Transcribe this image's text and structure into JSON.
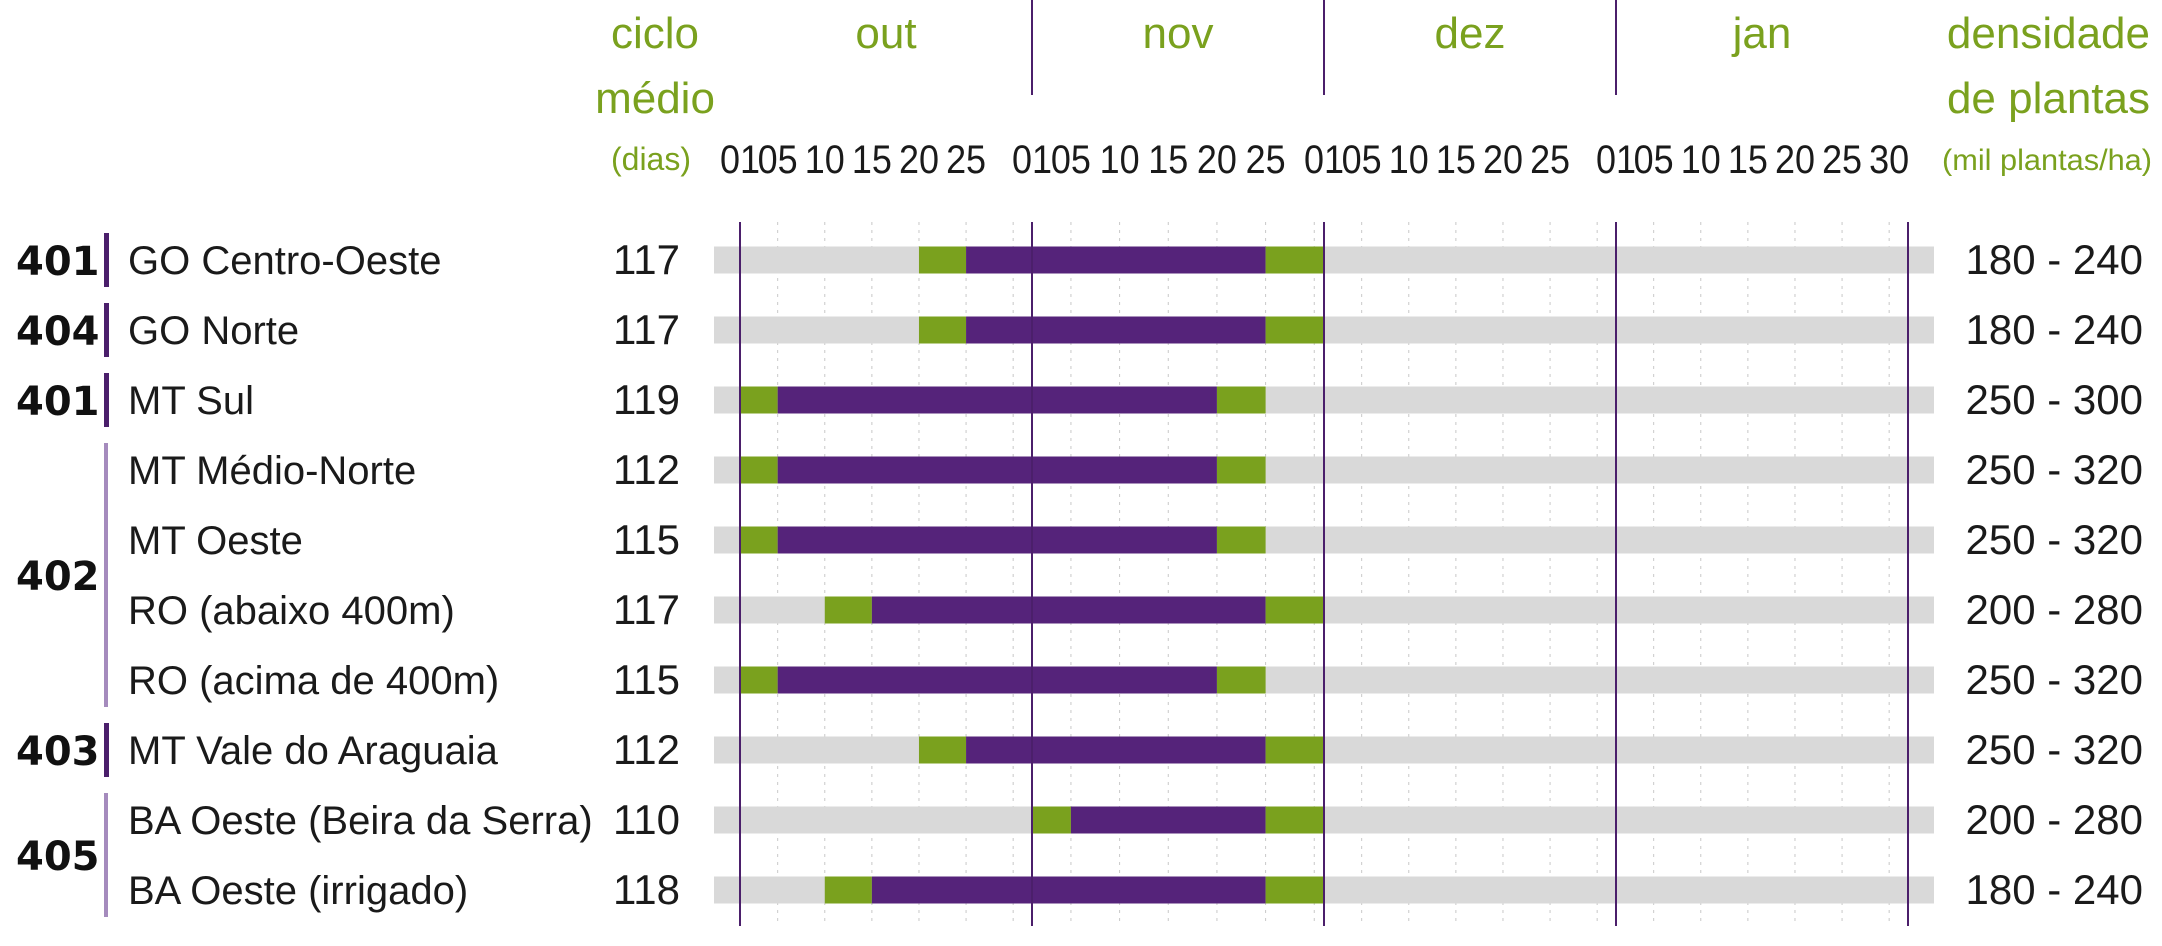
{
  "chart_data": {
    "type": "gantt",
    "headers": {
      "cycle": [
        "ciclo",
        "médio",
        "(dias)"
      ],
      "density": [
        "densidade",
        "de plantas",
        "(mil plantas/ha)"
      ]
    },
    "months": [
      {
        "name": "out",
        "ticks": [
          "01",
          "05",
          "10",
          "15",
          "20",
          "25"
        ]
      },
      {
        "name": "nov",
        "ticks": [
          "01",
          "05",
          "10",
          "15",
          "20",
          "25"
        ]
      },
      {
        "name": "dez",
        "ticks": [
          "01",
          "05",
          "10",
          "15",
          "20",
          "25"
        ]
      },
      {
        "name": "jan",
        "ticks": [
          "01",
          "05",
          "10",
          "15",
          "20",
          "25",
          "30"
        ]
      }
    ],
    "rows": [
      {
        "label": "GO Centro-Oeste",
        "cycle": "117",
        "density": "180 - 240",
        "green_start": "out 20",
        "purple_start": "out 25",
        "purple_end": "nov 25",
        "green_end": "dez 01"
      },
      {
        "label": "GO Norte",
        "cycle": "117",
        "density": "180 - 240",
        "green_start": "out 20",
        "purple_start": "out 25",
        "purple_end": "nov 25",
        "green_end": "dez 01"
      },
      {
        "label": "MT Sul",
        "cycle": "119",
        "density": "250 - 300",
        "green_start": "out 01",
        "purple_start": "out 05",
        "purple_end": "nov 20",
        "green_end": "nov 25"
      },
      {
        "label": "MT Médio-Norte",
        "cycle": "112",
        "density": "250 - 320",
        "green_start": "out 01",
        "purple_start": "out 05",
        "purple_end": "nov 20",
        "green_end": "nov 25"
      },
      {
        "label": "MT Oeste",
        "cycle": "115",
        "density": "250 - 320",
        "green_start": "out 01",
        "purple_start": "out 05",
        "purple_end": "nov 20",
        "green_end": "nov 25"
      },
      {
        "label": "RO (abaixo 400m)",
        "cycle": "117",
        "density": "200 - 280",
        "green_start": "out 10",
        "purple_start": "out 15",
        "purple_end": "nov 25",
        "green_end": "dez 01"
      },
      {
        "label": "RO (acima de 400m)",
        "cycle": "115",
        "density": "250 - 320",
        "green_start": "out 01",
        "purple_start": "out 05",
        "purple_end": "nov 20",
        "green_end": "nov 25"
      },
      {
        "label": "MT Vale do Araguaia",
        "cycle": "112",
        "density": "250 - 320",
        "green_start": "out 20",
        "purple_start": "out 25",
        "purple_end": "nov 25",
        "green_end": "dez 01"
      },
      {
        "label": "BA Oeste (Beira da Serra)",
        "cycle": "110",
        "density": "200 - 280",
        "green_start": "nov 01",
        "purple_start": "nov 05",
        "purple_end": "nov 25",
        "green_end": "dez 01"
      },
      {
        "label": "BA Oeste (irrigado)",
        "cycle": "118",
        "density": "180 - 240",
        "green_start": "out 10",
        "purple_start": "out 15",
        "purple_end": "nov 25",
        "green_end": "dez 01"
      }
    ],
    "regions": [
      {
        "code": "401",
        "rows": [
          0,
          0
        ]
      },
      {
        "code": "404",
        "rows": [
          1,
          1
        ]
      },
      {
        "code": "401",
        "rows": [
          2,
          2
        ]
      },
      {
        "code": "402",
        "rows": [
          3,
          6
        ]
      },
      {
        "code": "403",
        "rows": [
          7,
          7
        ]
      },
      {
        "code": "405",
        "rows": [
          8,
          9
        ]
      }
    ],
    "colors": {
      "accent_green": "#7aa11e",
      "purple": "#55237a",
      "region_bar_dark": "#4b1f6b",
      "region_bar_light": "#a58bbd",
      "track": "#d9d9d9",
      "text": "#1a1a1a"
    }
  }
}
